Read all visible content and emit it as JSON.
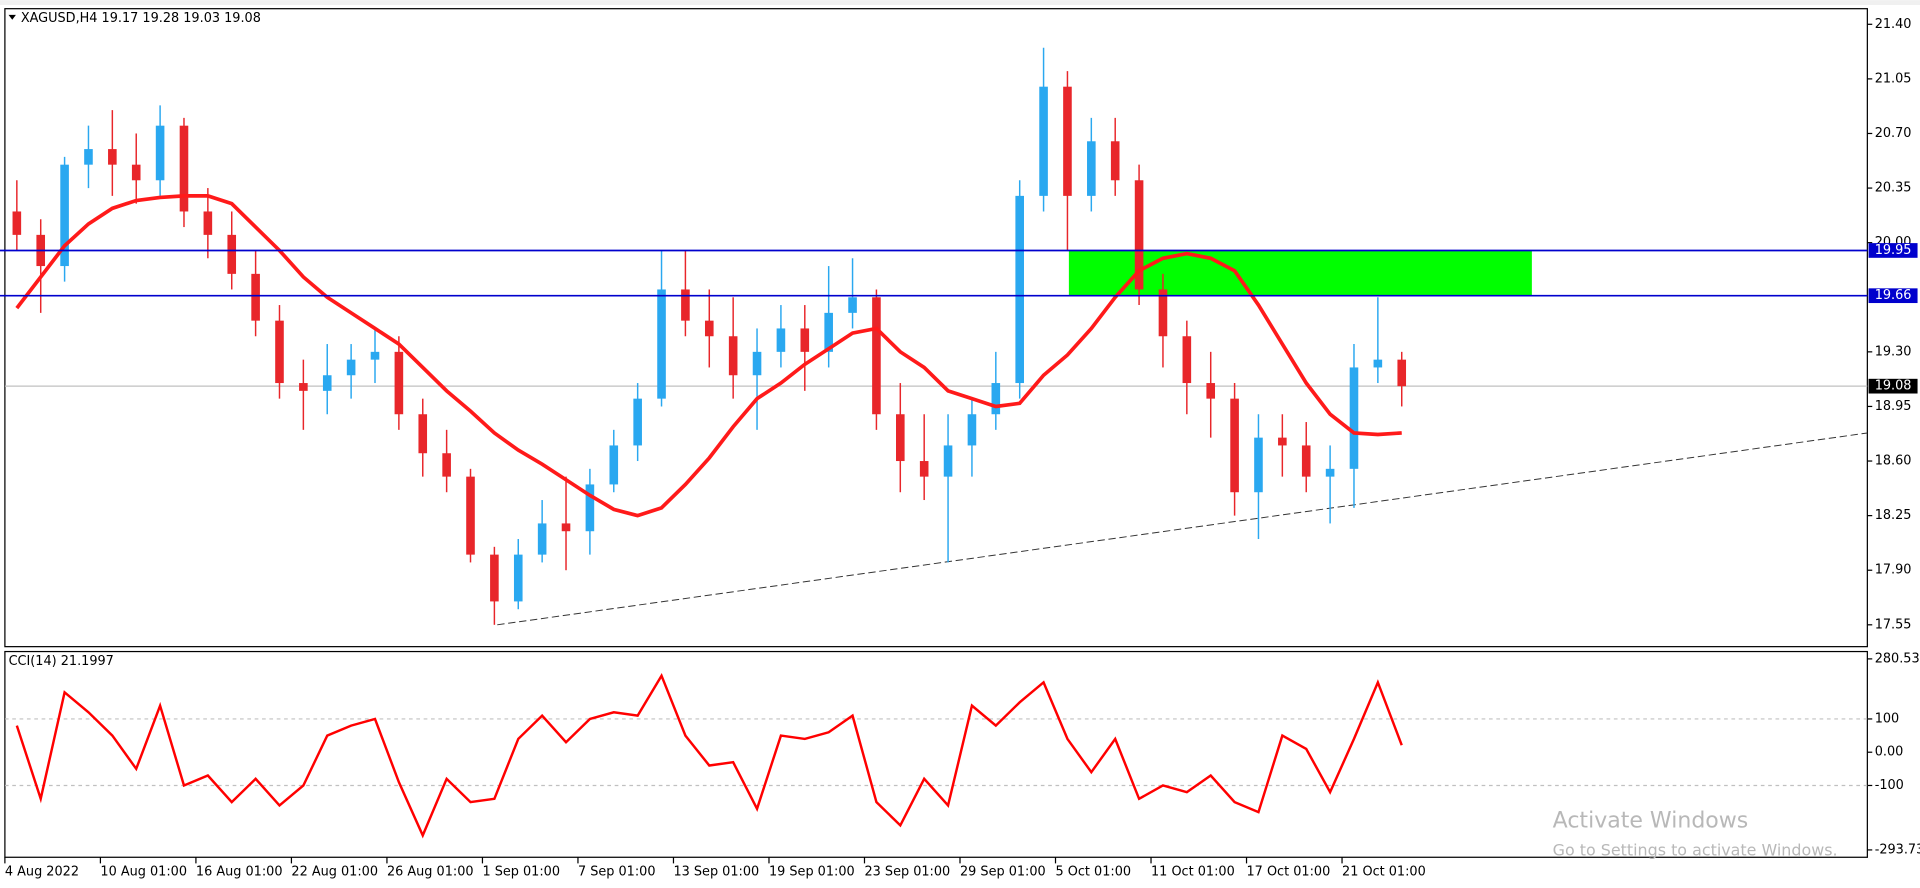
{
  "chart_data": [
    {
      "type": "candlestick",
      "title": "XAGUSD,H4  19.17 19.28 19.03 19.08",
      "x": [
        0,
        1,
        2,
        3,
        4,
        5,
        6,
        7,
        8,
        9,
        10,
        11,
        12,
        13,
        14,
        15,
        16,
        17,
        18,
        19,
        20,
        21,
        22,
        23,
        24,
        25,
        26,
        27,
        28,
        29,
        30,
        31,
        32,
        33,
        34,
        35,
        36,
        37,
        38,
        39,
        40,
        41,
        42,
        43,
        44,
        45,
        46,
        47,
        48,
        49,
        50,
        51,
        52,
        53,
        54,
        55,
        56,
        57,
        58
      ],
      "open": [
        20.2,
        20.05,
        19.85,
        20.5,
        20.6,
        20.5,
        20.4,
        20.75,
        20.2,
        20.05,
        19.8,
        19.5,
        19.1,
        19.05,
        19.15,
        19.25,
        19.3,
        18.9,
        18.65,
        18.5,
        18.0,
        17.7,
        18.0,
        18.2,
        18.15,
        18.45,
        18.7,
        19.0,
        19.7,
        19.5,
        19.4,
        19.15,
        19.3,
        19.45,
        19.3,
        19.55,
        19.65,
        18.9,
        18.6,
        18.5,
        18.7,
        18.9,
        19.1,
        20.3,
        21.0,
        20.3,
        20.65,
        20.4,
        19.7,
        19.4,
        19.1,
        19.0,
        18.4,
        18.75,
        18.7,
        18.5,
        18.55,
        19.2,
        19.25
      ],
      "high": [
        20.4,
        20.15,
        20.55,
        20.75,
        20.85,
        20.7,
        20.88,
        20.8,
        20.35,
        20.2,
        19.95,
        19.6,
        19.25,
        19.35,
        19.35,
        19.45,
        19.4,
        19.0,
        18.8,
        18.55,
        18.05,
        18.1,
        18.35,
        18.5,
        18.55,
        18.8,
        19.1,
        19.95,
        19.95,
        19.7,
        19.65,
        19.45,
        19.6,
        19.6,
        19.85,
        19.9,
        19.7,
        19.1,
        18.9,
        18.9,
        19.0,
        19.3,
        20.4,
        21.25,
        21.1,
        20.8,
        20.8,
        20.5,
        19.8,
        19.5,
        19.3,
        19.1,
        18.9,
        18.9,
        18.85,
        18.7,
        19.35,
        19.65,
        19.3
      ],
      "low": [
        19.95,
        19.55,
        19.75,
        20.35,
        20.3,
        20.25,
        20.3,
        20.1,
        19.9,
        19.7,
        19.4,
        19.0,
        18.8,
        18.9,
        19.0,
        19.1,
        18.8,
        18.5,
        18.4,
        17.95,
        17.55,
        17.65,
        17.95,
        17.9,
        18.0,
        18.4,
        18.6,
        18.95,
        19.4,
        19.2,
        19.0,
        18.8,
        19.2,
        19.05,
        19.2,
        19.45,
        18.8,
        18.4,
        18.35,
        17.95,
        18.5,
        18.8,
        19.0,
        20.2,
        19.95,
        20.2,
        20.3,
        19.6,
        19.2,
        18.9,
        18.75,
        18.25,
        18.1,
        18.5,
        18.4,
        18.2,
        18.3,
        19.1,
        18.95
      ],
      "close": [
        20.05,
        19.85,
        20.5,
        20.6,
        20.5,
        20.4,
        20.75,
        20.2,
        20.05,
        19.8,
        19.5,
        19.1,
        19.05,
        19.15,
        19.25,
        19.3,
        18.9,
        18.65,
        18.5,
        18.0,
        17.7,
        18.0,
        18.2,
        18.15,
        18.45,
        18.7,
        19.0,
        19.7,
        19.5,
        19.4,
        19.15,
        19.3,
        19.45,
        19.3,
        19.55,
        19.65,
        18.9,
        18.6,
        18.5,
        18.7,
        18.9,
        19.1,
        20.3,
        21.0,
        20.3,
        20.65,
        20.4,
        19.7,
        19.4,
        19.1,
        19.0,
        18.4,
        18.75,
        18.7,
        18.5,
        18.55,
        19.2,
        19.25,
        19.08
      ],
      "up_color": "#2aa8f0",
      "down_color": "#e8262a",
      "ma": {
        "color": "#ff1a1a",
        "values": [
          19.58,
          19.78,
          19.98,
          20.12,
          20.22,
          20.27,
          20.29,
          20.3,
          20.3,
          20.25,
          20.1,
          19.95,
          19.78,
          19.65,
          19.55,
          19.45,
          19.35,
          19.2,
          19.05,
          18.92,
          18.78,
          18.67,
          18.58,
          18.48,
          18.38,
          18.29,
          18.25,
          18.3,
          18.45,
          18.62,
          18.82,
          19.0,
          19.1,
          19.22,
          19.32,
          19.42,
          19.45,
          19.3,
          19.2,
          19.05,
          19.0,
          18.95,
          18.97,
          19.15,
          19.28,
          19.45,
          19.65,
          19.82,
          19.9,
          19.93,
          19.9,
          19.82,
          19.6,
          19.35,
          19.1,
          18.9,
          18.78,
          18.77,
          18.78
        ]
      },
      "hlines": [
        {
          "value": 19.95,
          "color": "#0000cd"
        },
        {
          "value": 19.66,
          "color": "#0000cd"
        }
      ],
      "price_line": {
        "value": 19.08,
        "color": "#c0c0c0"
      },
      "zone": {
        "x": [
          44.06,
          63.45
        ],
        "y": [
          19.66,
          19.95
        ],
        "color": "#00ff00"
      },
      "trendline": {
        "x": [
          20.12,
          77.5
        ],
        "y": [
          17.55,
          18.78
        ],
        "color": "#333333"
      },
      "xlim": [
        -0.5,
        77.5
      ],
      "xticks": [
        {
          "value": -0.5,
          "label": "4 Aug 2022"
        },
        {
          "value": 3.5,
          "label": "10 Aug 01:00"
        },
        {
          "value": 7.5,
          "label": "16 Aug 01:00"
        },
        {
          "value": 11.5,
          "label": "22 Aug 01:00"
        },
        {
          "value": 15.5,
          "label": "26 Aug 01:00"
        },
        {
          "value": 19.5,
          "label": "1 Sep 01:00"
        },
        {
          "value": 23.5,
          "label": "7 Sep 01:00"
        },
        {
          "value": 27.5,
          "label": "13 Sep 01:00"
        },
        {
          "value": 31.5,
          "label": "19 Sep 01:00"
        },
        {
          "value": 35.5,
          "label": "23 Sep 01:00"
        },
        {
          "value": 39.5,
          "label": "29 Sep 01:00"
        },
        {
          "value": 43.5,
          "label": "5 Oct 01:00"
        },
        {
          "value": 47.5,
          "label": "11 Oct 01:00"
        },
        {
          "value": 51.5,
          "label": "17 Oct 01:00"
        },
        {
          "value": 55.5,
          "label": "21 Oct 01:00"
        }
      ],
      "ylim": [
        17.41,
        21.5
      ],
      "yticks": [
        {
          "value": 21.4,
          "label": "21.40"
        },
        {
          "value": 21.05,
          "label": "21.05"
        },
        {
          "value": 20.7,
          "label": "20.70"
        },
        {
          "value": 20.35,
          "label": "20.35"
        },
        {
          "value": 20.0,
          "label": "20.00"
        },
        {
          "value": 19.3,
          "label": "19.30"
        },
        {
          "value": 18.95,
          "label": "18.95"
        },
        {
          "value": 18.6,
          "label": "18.60"
        },
        {
          "value": 18.25,
          "label": "18.25"
        },
        {
          "value": 17.9,
          "label": "17.90"
        },
        {
          "value": 17.55,
          "label": "17.55"
        }
      ]
    },
    {
      "type": "line",
      "title": "CCI(14) 21.1997",
      "x": [
        0,
        1,
        2,
        3,
        4,
        5,
        6,
        7,
        8,
        9,
        10,
        11,
        12,
        13,
        14,
        15,
        16,
        17,
        18,
        19,
        20,
        21,
        22,
        23,
        24,
        25,
        26,
        27,
        28,
        29,
        30,
        31,
        32,
        33,
        34,
        35,
        36,
        37,
        38,
        39,
        40,
        41,
        42,
        43,
        44,
        45,
        46,
        47,
        48,
        49,
        50,
        51,
        52,
        53,
        54,
        55,
        56,
        57,
        58
      ],
      "values": [
        80,
        -140,
        180,
        120,
        50,
        -50,
        140,
        -100,
        -70,
        -150,
        -80,
        -160,
        -100,
        50,
        80,
        100,
        -90,
        -250,
        -80,
        -150,
        -140,
        40,
        110,
        30,
        100,
        120,
        110,
        230,
        50,
        -40,
        -30,
        -170,
        50,
        40,
        60,
        110,
        -150,
        -220,
        -80,
        -160,
        140,
        80,
        150,
        210,
        40,
        -60,
        40,
        -140,
        -100,
        -120,
        -70,
        -150,
        -180,
        50,
        10,
        -120,
        40,
        210,
        21.1997
      ],
      "color": "#ff0000",
      "levels": [
        100,
        -100
      ],
      "xlim": [
        -0.5,
        77.5
      ],
      "ylim": [
        -315.8,
        302.6
      ],
      "yticks": [
        280.539,
        100,
        {
          "value": 0,
          "label": "0.00"
        },
        -100,
        -293.733
      ]
    }
  ],
  "watermark": {
    "title": "Activate Windows",
    "subtitle": "Go to Settings to activate Windows."
  }
}
